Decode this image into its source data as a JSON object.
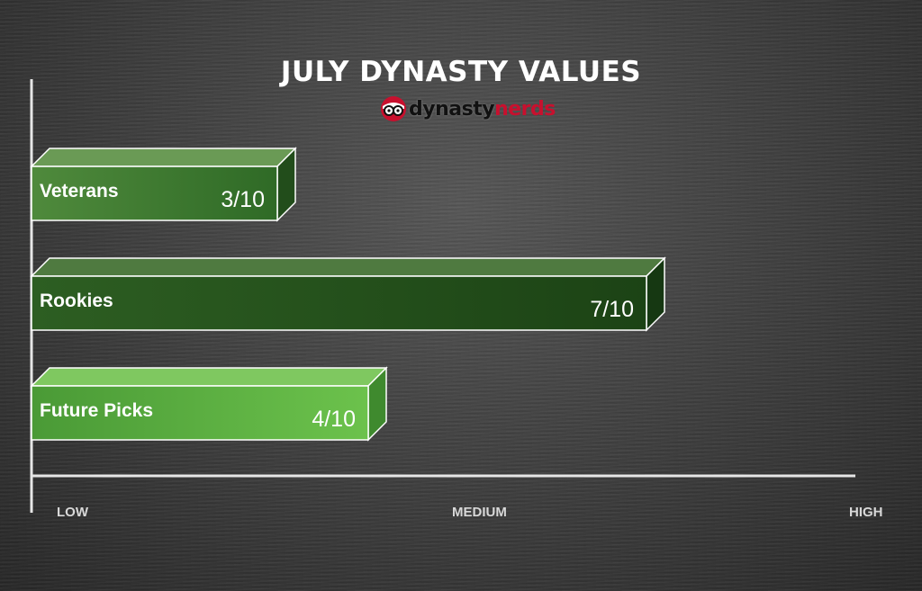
{
  "title": "JULY DYNASTY VALUES",
  "logo": {
    "icon": "nerd-glasses-icon",
    "text_a": "dynasty",
    "text_b": "nerds"
  },
  "chart_data": {
    "type": "bar",
    "orientation": "horizontal",
    "categories": [
      "Veterans",
      "Rookies",
      "Future Picks"
    ],
    "values": [
      3,
      7,
      4
    ],
    "value_labels": [
      "3/10",
      "7/10",
      "4/10"
    ],
    "max": 10,
    "bar_colors": [
      "#2f6a26",
      "#1f4a17",
      "#5fb043"
    ],
    "axis_labels": [
      "LOW",
      "MEDIUM",
      "HIGH"
    ],
    "grid": false,
    "legend": "none"
  }
}
